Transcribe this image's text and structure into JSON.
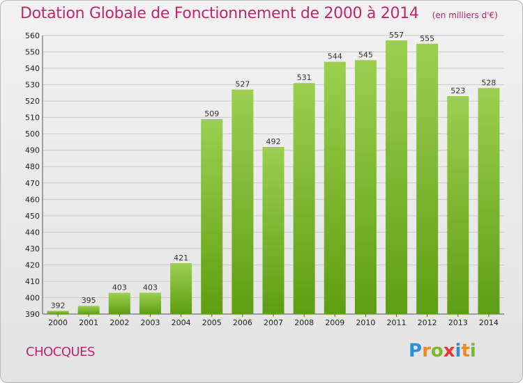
{
  "header": {
    "title": "Dotation Globale de Fonctionnement de 2000 à 2014",
    "subtitle": "(en milliers d'€)"
  },
  "footer": {
    "commune": "CHOCQUES",
    "logo_text": "Proxiti"
  },
  "colors": {
    "bar_top": "#9ccf4f",
    "bar_bottom": "#5e9e12",
    "title": "#c0266e",
    "grid": "#c8c8c8"
  },
  "chart_data": {
    "type": "bar",
    "title": "Dotation Globale de Fonctionnement de 2000 à 2014",
    "subtitle": "(en milliers d'€)",
    "categories": [
      "2000",
      "2001",
      "2002",
      "2003",
      "2004",
      "2005",
      "2006",
      "2007",
      "2008",
      "2009",
      "2010",
      "2011",
      "2012",
      "2013",
      "2014"
    ],
    "values": [
      392,
      395,
      403,
      403,
      421,
      509,
      527,
      492,
      531,
      544,
      545,
      557,
      555,
      523,
      528
    ],
    "xlabel": "",
    "ylabel": "",
    "ylim": [
      390,
      560
    ],
    "yticks": [
      390,
      400,
      410,
      420,
      430,
      440,
      450,
      460,
      470,
      480,
      490,
      500,
      510,
      520,
      530,
      540,
      550,
      560
    ],
    "grid": true,
    "legend": "none"
  }
}
